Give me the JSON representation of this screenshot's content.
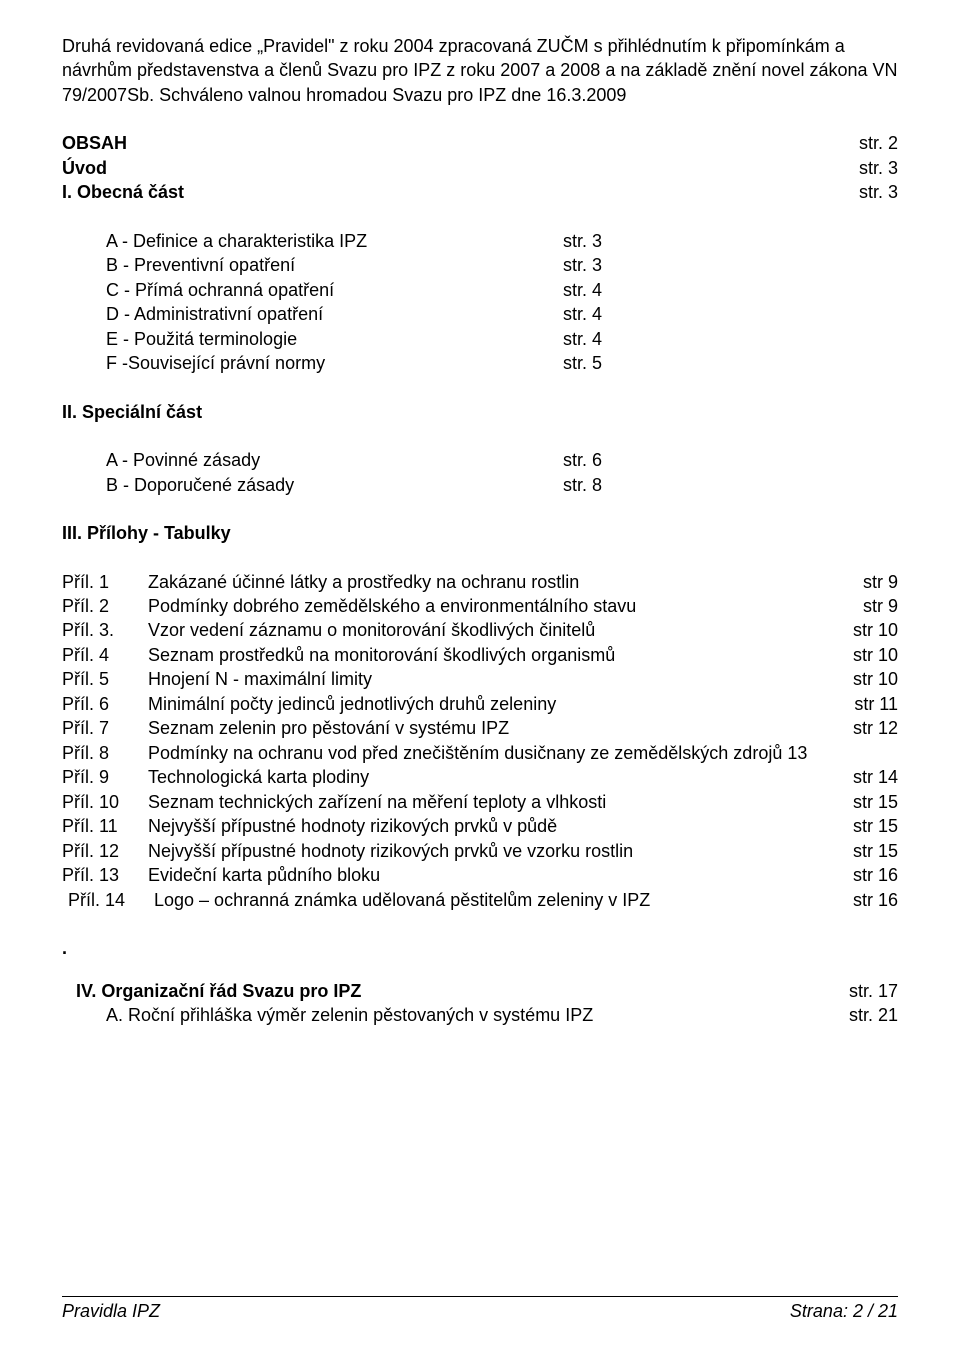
{
  "colors": {
    "text": "#000000",
    "background": "#ffffff",
    "rule": "#000000"
  },
  "typography": {
    "font_family": "Arial",
    "base_size_pt": 13.5,
    "bold_weight": 700
  },
  "intro_text": "Druhá revidovaná edice „Pravidel\" z roku 2004 zpracovaná ZUČM s přihlédnutím k připomínkám a návrhům představenstva a členů Svazu pro IPZ z roku 2007 a 2008 a na základě znění novel zákona VN 79/2007Sb. Schváleno valnou hromadou Svazu pro IPZ dne 16.3.2009",
  "toc_top": [
    {
      "label": "OBSAH",
      "page": "str. 2",
      "bold": true
    },
    {
      "label": "Úvod",
      "page": "str. 3",
      "bold": true
    },
    {
      "label": "I.  Obecná část",
      "page": "str. 3",
      "bold": true
    }
  ],
  "section1_items": [
    {
      "label": "A - Definice a charakteristika IPZ",
      "page": "str. 3"
    },
    {
      "label": "B  - Preventivní opatření",
      "page": "str. 3"
    },
    {
      "label": "C  - Přímá ochranná opatření",
      "page": "str. 4"
    },
    {
      "label": "D  - Administrativní opatření",
      "page": "str. 4"
    },
    {
      "label": "E  - Použitá terminologie",
      "page": "str. 4"
    },
    {
      "label": "F  -Související právní normy",
      "page": "str. 5"
    }
  ],
  "section2_head": "II. Speciální část",
  "section2_items": [
    {
      "label": "A - Povinné  zásady",
      "page": "str. 6"
    },
    {
      "label": "B - Doporučené zásady",
      "page": "str. 8"
    }
  ],
  "section3_head": "III. Přílohy - Tabulky",
  "pril_items": [
    {
      "num": "Příl. 1",
      "text": "Zakázané účinné látky a prostředky na ochranu rostlin",
      "page": "str  9"
    },
    {
      "num": "Příl. 2",
      "text": "Podmínky dobrého zemědělského a environmentálního stavu",
      "page": "str  9"
    },
    {
      "num": "Příl. 3.",
      "text": "Vzor vedení záznamu o  monitorování škodlivých činitelů",
      "page": "str  10"
    },
    {
      "num": "Příl. 4",
      "text": "Seznam prostředků na monitorování škodlivých organismů",
      "page": "str  10"
    },
    {
      "num": "Příl. 5",
      "text": "Hnojení N - maximální limity",
      "page": "str  10"
    },
    {
      "num": "Příl. 6",
      "text": "Minimální počty jedinců jednotlivých druhů zeleniny",
      "page": "str 11"
    },
    {
      "num": "Příl. 7",
      "text": "Seznam zelenin pro pěstování v systému IPZ",
      "page": "str 12"
    },
    {
      "num": "Příl. 8",
      "text": "Podmínky na ochranu vod před znečištěním dusičnany ze zemědělských zdrojů 13",
      "page": ""
    },
    {
      "num": "Příl. 9",
      "text": "Technologická karta plodiny",
      "page": "str  14"
    },
    {
      "num": "Příl. 10",
      "text": "Seznam technických zařízení na měření teploty a vlhkosti",
      "page": "str  15"
    },
    {
      "num": "Příl. 11",
      "text": "Nejvyšší přípustné hodnoty rizikových prvků v půdě",
      "page": "str  15"
    },
    {
      "num": "Příl. 12",
      "text": "Nejvyšší přípustné hodnoty rizikových prvků ve vzorku rostlin",
      "page": "str 15"
    },
    {
      "num": "Příl. 13",
      "text": "Evideční karta půdního bloku",
      "page": "str  16"
    },
    {
      "num": "Příl.  14",
      "text": "Logo – ochranná známka udělovaná pěstitelům zeleniny v IPZ",
      "page": "str 16",
      "shift": true
    }
  ],
  "final": {
    "head_label": "IV. Organizační řád Svazu pro IPZ",
    "head_page": "str. 17",
    "sub_label": "A.  Roční přihláška výměr zelenin pěstovaných v systému IPZ",
    "sub_page": "str. 21"
  },
  "footer": {
    "left": "Pravidla IPZ",
    "right": "Strana: 2 / 21"
  }
}
